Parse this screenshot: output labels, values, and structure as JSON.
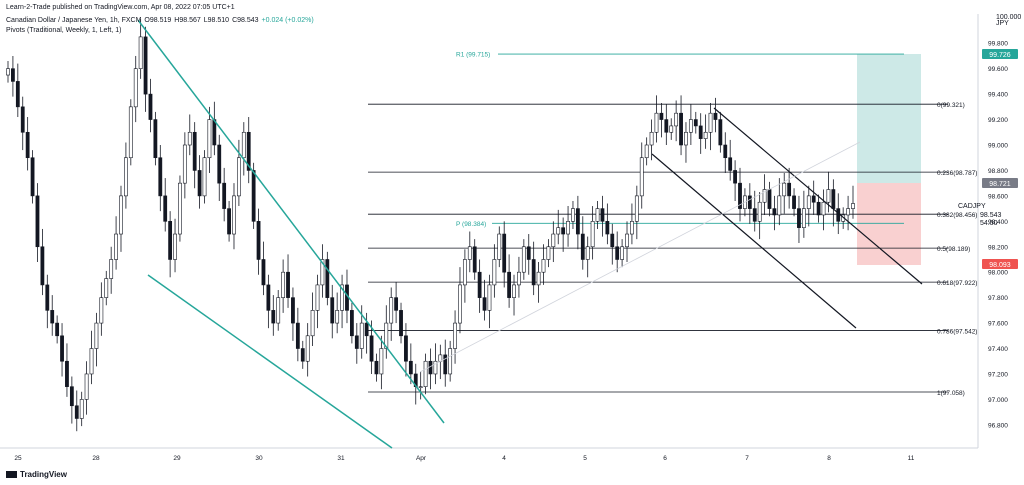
{
  "header": {
    "published": "Learn-2-Trade published on TradingView.com, Apr 08, 2022 07:05 UTC+1",
    "symbol": "Canadian Dollar / Japanese Yen, 1h, FXCM",
    "open": "O98.519",
    "high": "H98.567",
    "low": "L98.510",
    "close": "C98.543",
    "change": "+0.024 (+0.02%)",
    "indicator": "Pivots (Traditional, Weekly, 1, Left, 1)"
  },
  "axis": {
    "currency_top": "100.000",
    "currency_unit": "JPY",
    "cadjpy_label": "CADJPY",
    "last_price": "98.543",
    "countdown": "54:50",
    "target_price": "99.726",
    "current_box_price": "98.721",
    "stop_price": "98.093"
  },
  "footer": {
    "brand": "TradingView"
  },
  "colors": {
    "up": "#ffffff",
    "down": "#131722",
    "wedge": "#26a69a",
    "pivot": "#26a69a",
    "fib": "#131722",
    "target_zone": "#cde9e7",
    "stop_zone": "#f9d0d0",
    "target_badge": "#26a69a",
    "stop_badge": "#ef5350"
  },
  "chart_data": {
    "type": "candlestick",
    "symbol": "CADJPY",
    "timeframe": "1h",
    "ylim": [
      96.6,
      100.0
    ],
    "y_ticks": [
      96.8,
      97.0,
      97.2,
      97.4,
      97.6,
      97.8,
      98.0,
      98.2,
      98.4,
      98.6,
      98.8,
      99.0,
      99.2,
      99.4,
      99.6,
      99.8
    ],
    "y_tick_labels": [
      "96.800",
      "97.000",
      "97.200",
      "97.400",
      "97.600",
      "97.800",
      "98.000",
      "98.200",
      "98.400",
      "98.600",
      "98.800",
      "99.000",
      "99.200",
      "99.400",
      "99.600",
      "99.800"
    ],
    "x_labels": [
      "25",
      "28",
      "29",
      "30",
      "31",
      "Apr",
      "4",
      "5",
      "6",
      "7",
      "8",
      "11"
    ],
    "fib_levels": [
      {
        "ratio": "0",
        "price": 99.321,
        "label": "0(99.321)"
      },
      {
        "ratio": "0.236",
        "price": 98.787,
        "label": "0.236(98.787)"
      },
      {
        "ratio": "0.382",
        "price": 98.456,
        "label": "0.382(98.456)"
      },
      {
        "ratio": "0.5",
        "price": 98.189,
        "label": "0.5(98.189)"
      },
      {
        "ratio": "0.618",
        "price": 97.922,
        "label": "0.618(97.922)"
      },
      {
        "ratio": "0.786",
        "price": 97.542,
        "label": "0.786(97.542)"
      },
      {
        "ratio": "1",
        "price": 97.058,
        "label": "1(97.058)"
      }
    ],
    "pivots": [
      {
        "name": "R1",
        "price": 99.715,
        "label": "R1 (99.715)"
      },
      {
        "name": "P",
        "price": 98.384,
        "label": "P (98.384)"
      }
    ],
    "position": {
      "target": 99.726,
      "entry": 98.721,
      "stop": 98.093
    },
    "close_series": [
      99.6,
      99.5,
      99.3,
      99.1,
      98.9,
      98.6,
      98.2,
      97.9,
      97.7,
      97.6,
      97.5,
      97.3,
      97.1,
      96.95,
      96.85,
      97.0,
      97.2,
      97.4,
      97.6,
      97.8,
      97.95,
      98.1,
      98.3,
      98.6,
      98.9,
      99.3,
      99.6,
      99.85,
      99.4,
      99.2,
      98.9,
      98.6,
      98.4,
      98.1,
      98.3,
      98.7,
      99.0,
      99.1,
      98.8,
      98.6,
      98.9,
      99.2,
      99.0,
      98.7,
      98.5,
      98.3,
      98.6,
      98.9,
      99.1,
      98.8,
      98.4,
      98.1,
      97.9,
      97.7,
      97.6,
      97.8,
      98.0,
      97.8,
      97.6,
      97.4,
      97.3,
      97.5,
      97.7,
      97.9,
      98.1,
      97.8,
      97.6,
      97.7,
      97.9,
      97.7,
      97.5,
      97.4,
      97.6,
      97.5,
      97.3,
      97.2,
      97.4,
      97.6,
      97.8,
      97.7,
      97.5,
      97.3,
      97.2,
      97.1,
      97.1,
      97.3,
      97.2,
      97.3,
      97.35,
      97.2,
      97.4,
      97.6,
      97.9,
      98.1,
      98.2,
      98.0,
      97.8,
      97.7,
      97.9,
      98.1,
      98.3,
      98.0,
      97.8,
      97.9,
      98.0,
      98.2,
      98.1,
      97.9,
      98.0,
      98.1,
      98.2,
      98.3,
      98.35,
      98.3,
      98.4,
      98.5,
      98.3,
      98.1,
      98.2,
      98.4,
      98.5,
      98.4,
      98.3,
      98.2,
      98.1,
      98.2,
      98.3,
      98.4,
      98.6,
      98.9,
      99.0,
      99.1,
      99.25,
      99.2,
      99.1,
      99.15,
      99.25,
      99.0,
      99.1,
      99.2,
      99.15,
      99.05,
      99.1,
      99.25,
      99.2,
      99.0,
      98.9,
      98.8,
      98.7,
      98.5,
      98.6,
      98.5,
      98.4,
      98.55,
      98.65,
      98.5,
      98.45,
      98.6,
      98.7,
      98.6,
      98.5,
      98.35,
      98.5,
      98.6,
      98.55,
      98.45,
      98.55,
      98.65,
      98.5,
      98.4,
      98.45,
      98.5,
      98.54
    ]
  }
}
